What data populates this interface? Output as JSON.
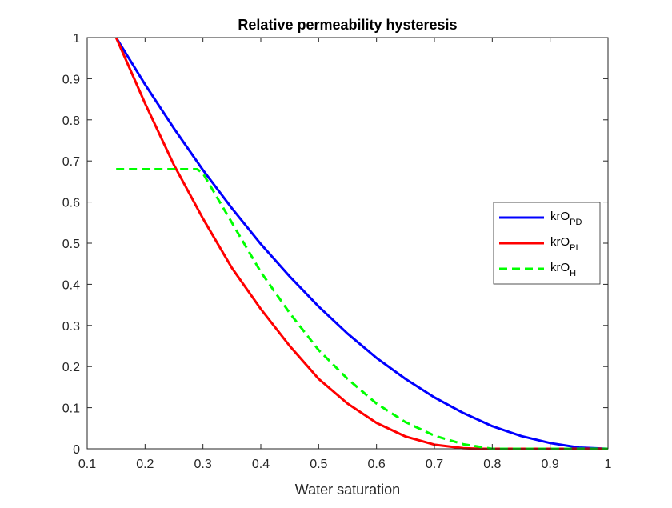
{
  "chart_data": {
    "type": "line",
    "title": "Relative permeability hysteresis",
    "xlabel": "Water saturation",
    "ylabel": "",
    "xlim": [
      0.1,
      1
    ],
    "ylim": [
      0,
      1
    ],
    "xticks": [
      "0.1",
      "0.2",
      "0.3",
      "0.4",
      "0.5",
      "0.6",
      "0.7",
      "0.8",
      "0.9",
      "1"
    ],
    "yticks": [
      "0",
      "0.1",
      "0.2",
      "0.3",
      "0.4",
      "0.5",
      "0.6",
      "0.7",
      "0.8",
      "0.9",
      "1"
    ],
    "grid": false,
    "legend_position": "right",
    "series": [
      {
        "name": "krO",
        "name_subscript": "PD",
        "color": "#0000ff",
        "style": "solid",
        "x": [
          0.15,
          0.2,
          0.25,
          0.3,
          0.35,
          0.4,
          0.45,
          0.5,
          0.55,
          0.6,
          0.65,
          0.7,
          0.75,
          0.8,
          0.85,
          0.9,
          0.95,
          1.0
        ],
        "y": [
          1.0,
          0.886,
          0.779,
          0.678,
          0.585,
          0.498,
          0.419,
          0.346,
          0.28,
          0.221,
          0.17,
          0.125,
          0.087,
          0.055,
          0.031,
          0.014,
          0.003,
          0.0
        ]
      },
      {
        "name": "krO",
        "name_subscript": "PI",
        "color": "#ff0000",
        "style": "solid",
        "x": [
          0.15,
          0.2,
          0.25,
          0.3,
          0.35,
          0.4,
          0.45,
          0.5,
          0.55,
          0.6,
          0.65,
          0.7,
          0.75,
          0.78,
          0.8,
          0.85,
          0.9,
          0.95,
          1.0
        ],
        "y": [
          1.0,
          0.84,
          0.69,
          0.56,
          0.44,
          0.34,
          0.25,
          0.17,
          0.11,
          0.063,
          0.03,
          0.01,
          0.0015,
          0.0,
          0.0,
          0.0,
          0.0,
          0.0,
          0.0
        ]
      },
      {
        "name": "krO",
        "name_subscript": "H",
        "color": "#00ff00",
        "style": "dashed",
        "x": [
          0.15,
          0.2,
          0.25,
          0.29,
          0.3,
          0.35,
          0.4,
          0.45,
          0.5,
          0.55,
          0.6,
          0.65,
          0.7,
          0.75,
          0.8,
          0.85,
          0.9,
          0.95,
          1.0
        ],
        "y": [
          0.68,
          0.68,
          0.68,
          0.68,
          0.67,
          0.55,
          0.43,
          0.33,
          0.24,
          0.17,
          0.11,
          0.065,
          0.032,
          0.011,
          0.0,
          0.0,
          0.0,
          0.0,
          0.0
        ]
      }
    ]
  }
}
